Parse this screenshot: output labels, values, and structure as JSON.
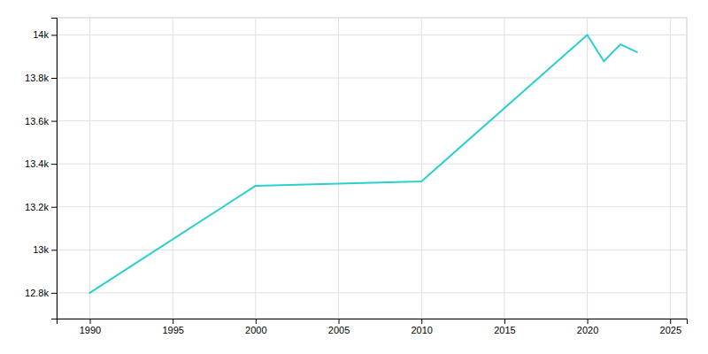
{
  "chart_data": {
    "type": "line",
    "x": [
      1990,
      2000,
      2010,
      2020,
      2021,
      2022,
      2023
    ],
    "values": [
      12800,
      13298,
      13318,
      14000,
      13877,
      13956,
      13920
    ],
    "color": "#2acfcf",
    "xlim": [
      1988,
      2026
    ],
    "ylim": [
      12680,
      14080
    ],
    "xticks": [
      1990,
      1995,
      2000,
      2005,
      2010,
      2015,
      2020,
      2025
    ],
    "yticks": [
      {
        "value": 12800,
        "label": "12.8k"
      },
      {
        "value": 13000,
        "label": "13k"
      },
      {
        "value": 13200,
        "label": "13.2k"
      },
      {
        "value": 13400,
        "label": "13.4k"
      },
      {
        "value": 13600,
        "label": "13.6k"
      },
      {
        "value": 13800,
        "label": "13.8k"
      },
      {
        "value": 14000,
        "label": "14k"
      }
    ],
    "grid": true
  }
}
